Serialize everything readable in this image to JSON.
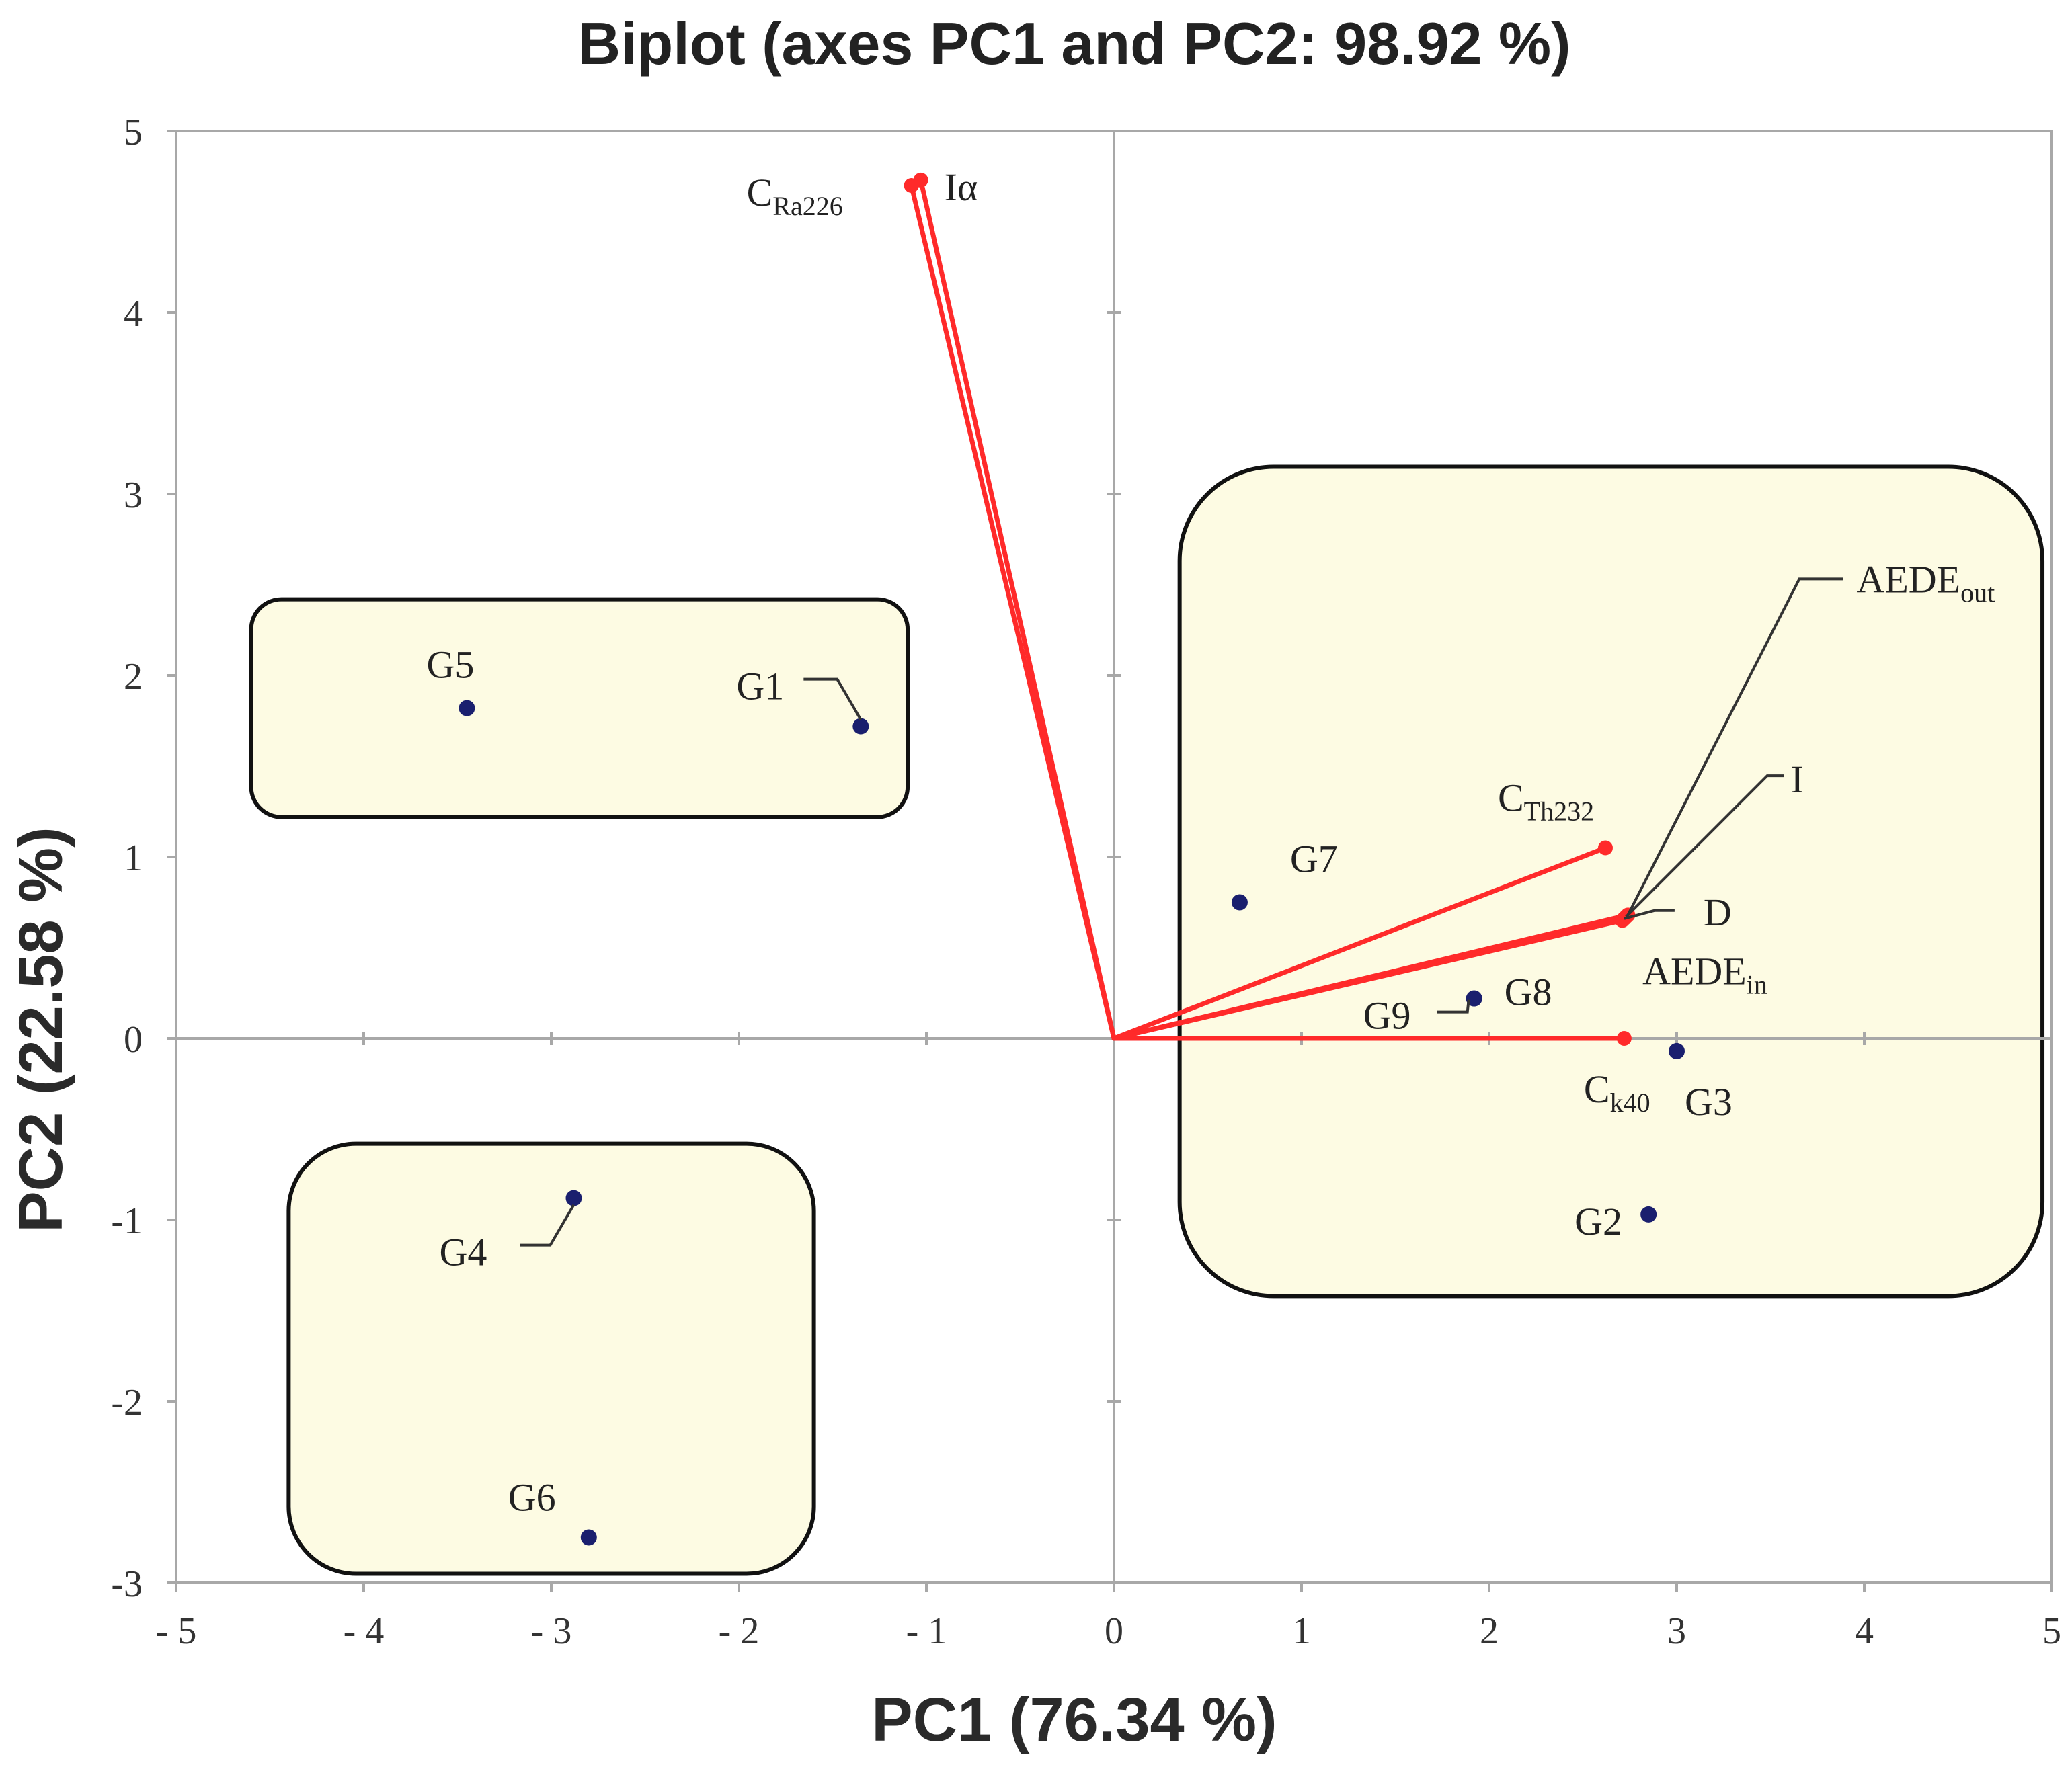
{
  "chart_data": {
    "type": "scatter",
    "title": "Biplot (axes PC1 and PC2: 98.92 %)",
    "xlabel": "PC1 (76.34 %)",
    "ylabel": "PC2 (22.58 %)",
    "xlim": [
      -5,
      5
    ],
    "ylim": [
      -3,
      5
    ],
    "xticks": [
      -5,
      -4,
      -3,
      -2,
      -1,
      0,
      1,
      2,
      3,
      4,
      5
    ],
    "yticks": [
      -3,
      -2,
      -1,
      0,
      1,
      2,
      3,
      4,
      5
    ],
    "xtick_labels": [
      "- 5",
      "- 4",
      "- 3",
      "- 2",
      "- 1",
      "0",
      "1",
      "2",
      "3",
      "4",
      "5"
    ],
    "ytick_labels": [
      "-3",
      "-2",
      "-1",
      "0",
      "1",
      "2",
      "3",
      "4",
      "5"
    ],
    "colors": {
      "observation": "#1a1f6e",
      "variable": "#ff2a2a",
      "group_fill": "#fdfbe3"
    },
    "groups": [
      {
        "x0": -4.6,
        "x1": -1.1,
        "y0": 1.22,
        "y1": 2.42
      },
      {
        "x0": -4.4,
        "x1": -1.6,
        "y0": -2.95,
        "y1": -0.58
      },
      {
        "x0": 0.35,
        "x1": 4.95,
        "y0": -1.42,
        "y1": 3.15
      }
    ],
    "observations": [
      {
        "name": "G1",
        "x": -1.35,
        "y": 1.72
      },
      {
        "name": "G2",
        "x": 2.85,
        "y": -0.97
      },
      {
        "name": "G3",
        "x": 3.0,
        "y": -0.07
      },
      {
        "name": "G4",
        "x": -2.88,
        "y": -0.88
      },
      {
        "name": "G5",
        "x": -3.45,
        "y": 1.82
      },
      {
        "name": "G6",
        "x": -2.8,
        "y": -2.75
      },
      {
        "name": "G7",
        "x": 0.67,
        "y": 0.75
      },
      {
        "name": "G8",
        "x": 1.92,
        "y": 0.22
      },
      {
        "name": "G9",
        "x": 1.92,
        "y": 0.22
      }
    ],
    "variables": [
      {
        "name": "CRa226",
        "base": "C",
        "sub": "Ra226",
        "x": -1.08,
        "y": 4.7
      },
      {
        "name": "Iα",
        "base": "Iα",
        "sub": "",
        "x": -1.03,
        "y": 4.73
      },
      {
        "name": "CTh232",
        "base": "C",
        "sub": "Th232",
        "x": 2.62,
        "y": 1.05
      },
      {
        "name": "AEDEout",
        "base": "AEDE",
        "sub": "out",
        "x": 2.74,
        "y": 0.68
      },
      {
        "name": "I",
        "base": "I",
        "sub": "",
        "x": 2.73,
        "y": 0.67
      },
      {
        "name": "D",
        "base": "D",
        "sub": "",
        "x": 2.72,
        "y": 0.66
      },
      {
        "name": "AEDEin",
        "base": "AEDE",
        "sub": "in",
        "x": 2.71,
        "y": 0.65
      },
      {
        "name": "Ck40",
        "base": "C",
        "sub": "k40",
        "x": 2.72,
        "y": 0.0
      }
    ]
  }
}
